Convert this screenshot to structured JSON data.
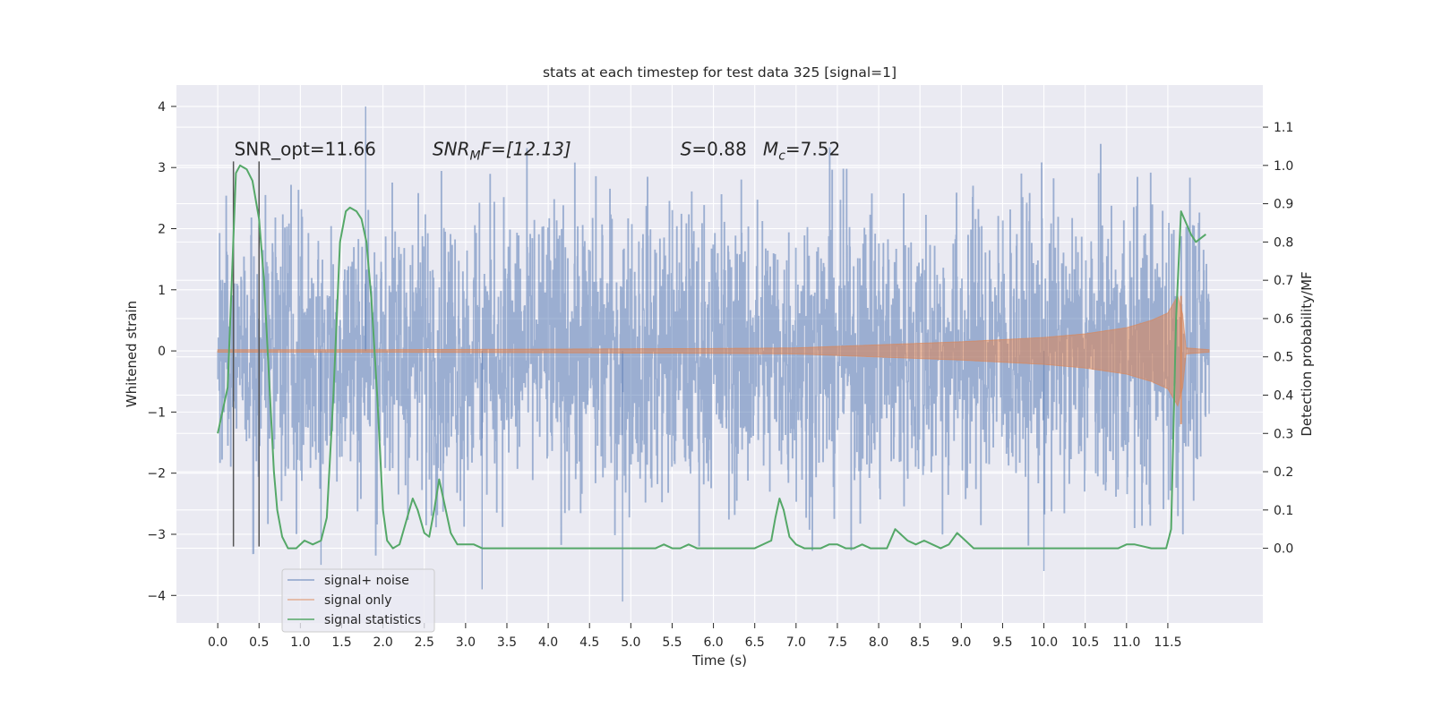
{
  "chart_data": {
    "type": "line",
    "title": "stats at each timestep for test data 325 [signal=1]",
    "xlabel": "Time (s)",
    "ylabel": "Whitened strain",
    "ylabel_right": "Detection probability/MF",
    "xlim": [
      -0.5,
      12.65
    ],
    "ylim": [
      -4.45,
      4.35
    ],
    "ylim_right": [
      -0.195,
      1.21
    ],
    "x_ticks": [
      0,
      0.5,
      1,
      1.5,
      2,
      2.5,
      3,
      3.5,
      4,
      4.5,
      5,
      5.5,
      6,
      6.5,
      7,
      7.5,
      8,
      8.5,
      9,
      9.5,
      10,
      10.5,
      11,
      11.5
    ],
    "x_tick_labels": [
      "0.0",
      "0.5",
      "1.0",
      "1.5",
      "2.0",
      "2.5",
      "3.0",
      "3.5",
      "4.0",
      "4.5",
      "5.0",
      "5.5",
      "6.0",
      "6.5",
      "7.0",
      "7.5",
      "8.0",
      "8.5",
      "9.0",
      "9.5",
      "10.0",
      "10.5",
      "11.0",
      "11.5"
    ],
    "y_ticks": [
      -4,
      -3,
      -2,
      -1,
      0,
      1,
      2,
      3,
      4
    ],
    "y_tick_labels": [
      "−4",
      "−3",
      "−2",
      "−1",
      "0",
      "1",
      "2",
      "3",
      "4"
    ],
    "y_right_ticks": [
      0,
      0.1,
      0.2,
      0.3,
      0.4,
      0.5,
      0.6,
      0.7,
      0.8,
      0.9,
      1.0,
      1.1
    ],
    "y_right_tick_labels": [
      "0.0",
      "0.1",
      "0.2",
      "0.3",
      "0.4",
      "0.5",
      "0.6",
      "0.7",
      "0.8",
      "0.9",
      "1.0",
      "1.1"
    ],
    "grid": true,
    "legend_position": "lower-left",
    "annotations": {
      "snr_opt": "SNR_opt=11.66",
      "snr_mf_sym": "SNR",
      "snr_mf_sub": "M",
      "snr_mf_rest": "F=[12.13]",
      "s_sym": "S",
      "s_rest": "=0.88",
      "mc_sym": "M",
      "mc_sub": "c",
      "mc_rest": "=7.52"
    },
    "vlines_x": [
      0.19,
      0.5
    ],
    "series": [
      {
        "name": "signal+ noise",
        "color": "#4c72b0",
        "axis": "left",
        "x_range": [
          0,
          12
        ],
        "amplitude_envelope": [
          [
            0,
            1.5
          ],
          [
            0.5,
            2.2
          ],
          [
            1.0,
            2.1
          ],
          [
            2.0,
            2.2
          ],
          [
            3.0,
            2.2
          ],
          [
            4.0,
            2.2
          ],
          [
            5.0,
            2.2
          ],
          [
            6.0,
            2.2
          ],
          [
            7.0,
            2.2
          ],
          [
            8.0,
            2.2
          ],
          [
            9.0,
            2.2
          ],
          [
            10.0,
            2.2
          ],
          [
            11.0,
            2.3
          ],
          [
            11.6,
            2.4
          ],
          [
            12.0,
            1.8
          ]
        ],
        "peak_max": 4.0,
        "peak_min": -4.1
      },
      {
        "name": "signal only",
        "color": "#dd8452",
        "axis": "left",
        "x_range": [
          0,
          12
        ],
        "amplitude_envelope": [
          [
            0,
            0.02
          ],
          [
            2,
            0.02
          ],
          [
            4,
            0.03
          ],
          [
            6,
            0.04
          ],
          [
            7.0,
            0.05
          ],
          [
            8.0,
            0.1
          ],
          [
            9.0,
            0.15
          ],
          [
            10.0,
            0.22
          ],
          [
            10.5,
            0.28
          ],
          [
            11.0,
            0.38
          ],
          [
            11.3,
            0.5
          ],
          [
            11.5,
            0.62
          ],
          [
            11.62,
            0.9
          ],
          [
            11.68,
            0.6
          ],
          [
            11.72,
            0.05
          ],
          [
            12.0,
            0.02
          ]
        ]
      },
      {
        "name": "signal statistics",
        "color": "#55a868",
        "axis": "right",
        "x": [
          0.0,
          0.12,
          0.22,
          0.27,
          0.35,
          0.42,
          0.5,
          0.56,
          0.62,
          0.68,
          0.72,
          0.78,
          0.85,
          0.95,
          1.05,
          1.15,
          1.25,
          1.32,
          1.4,
          1.48,
          1.55,
          1.6,
          1.68,
          1.74,
          1.8,
          1.86,
          1.93,
          2.0,
          2.05,
          2.12,
          2.2,
          2.28,
          2.36,
          2.42,
          2.5,
          2.56,
          2.62,
          2.68,
          2.74,
          2.82,
          2.9,
          3.0,
          3.1,
          3.2,
          3.3,
          3.4,
          3.5,
          3.6,
          4.0,
          4.5,
          5.0,
          5.2,
          5.3,
          5.4,
          5.5,
          5.6,
          5.7,
          5.8,
          5.9,
          6.0,
          6.5,
          6.7,
          6.75,
          6.8,
          6.85,
          6.92,
          7.0,
          7.1,
          7.2,
          7.3,
          7.4,
          7.5,
          7.6,
          7.7,
          7.8,
          7.9,
          8.0,
          8.1,
          8.2,
          8.25,
          8.35,
          8.45,
          8.55,
          8.65,
          8.75,
          8.85,
          8.95,
          9.05,
          9.15,
          9.3,
          9.5,
          10.0,
          10.5,
          10.9,
          11.0,
          11.1,
          11.3,
          11.4,
          11.48,
          11.54,
          11.6,
          11.66,
          11.72,
          11.78,
          11.84,
          11.9,
          11.96
        ],
        "values": [
          0.3,
          0.42,
          0.98,
          1.0,
          0.99,
          0.96,
          0.86,
          0.7,
          0.45,
          0.2,
          0.1,
          0.03,
          0.0,
          0.0,
          0.02,
          0.01,
          0.02,
          0.08,
          0.4,
          0.8,
          0.88,
          0.89,
          0.88,
          0.86,
          0.8,
          0.65,
          0.4,
          0.1,
          0.02,
          0.0,
          0.01,
          0.07,
          0.13,
          0.1,
          0.04,
          0.03,
          0.1,
          0.18,
          0.12,
          0.04,
          0.01,
          0.01,
          0.01,
          0.0,
          0.0,
          0.0,
          0.0,
          0.0,
          0.0,
          0.0,
          0.0,
          0.0,
          0.0,
          0.01,
          0.0,
          0.0,
          0.01,
          0.0,
          0.0,
          0.0,
          0.0,
          0.02,
          0.08,
          0.13,
          0.1,
          0.03,
          0.01,
          0.0,
          0.0,
          0.0,
          0.01,
          0.01,
          0.0,
          0.0,
          0.01,
          0.0,
          0.0,
          0.0,
          0.05,
          0.04,
          0.02,
          0.01,
          0.02,
          0.01,
          0.0,
          0.01,
          0.04,
          0.02,
          0.0,
          0.0,
          0.0,
          0.0,
          0.0,
          0.0,
          0.01,
          0.01,
          0.0,
          0.0,
          0.0,
          0.05,
          0.6,
          0.88,
          0.85,
          0.82,
          0.8,
          0.81,
          0.82
        ]
      }
    ]
  }
}
